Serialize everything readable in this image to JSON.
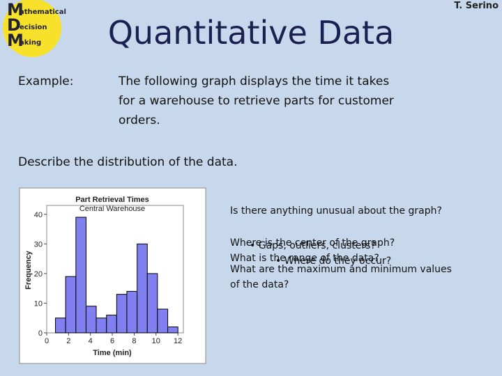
{
  "header": {
    "logo": {
      "letters": [
        "M",
        "D",
        "M"
      ],
      "words": [
        "athematical",
        "ecision",
        "aking"
      ]
    },
    "title": "Quantitative Data",
    "author": "T. Serino"
  },
  "example": {
    "label": "Example:",
    "lines": [
      "The following graph displays the time it takes",
      "for a warehouse to retrieve parts for customer",
      "orders."
    ]
  },
  "prompt": "Describe the distribution of the data.",
  "questions": {
    "lines": [
      "Is there anything unusual about the graph?",
      "• Gaps, outliers, clusters?",
      "• Where do they occur?",
      "Where is the center of the graph?",
      "What is the range of the data?",
      "What are the maximum and minimum values",
      "of the data?"
    ]
  },
  "chart_data": {
    "type": "histogram",
    "title": "Part Retrieval Times",
    "subtitle": "Central Warehouse",
    "x_label": "Time (min)",
    "y_label": "Frequency",
    "bins": [
      0.8,
      1.73,
      2.67,
      3.6,
      4.53,
      5.47,
      6.4,
      7.33,
      8.27,
      9.2,
      10.13,
      11.07,
      12
    ],
    "values": [
      5,
      19,
      39,
      9,
      5,
      6,
      13,
      14,
      30,
      20,
      8,
      2
    ],
    "color": "#8080f0",
    "xlim": [
      0,
      12.5
    ],
    "ylim": [
      0,
      43
    ],
    "xticks": [
      0,
      2,
      4,
      6,
      8,
      10,
      12
    ],
    "yticks": [
      0,
      10,
      20,
      30,
      40
    ]
  }
}
